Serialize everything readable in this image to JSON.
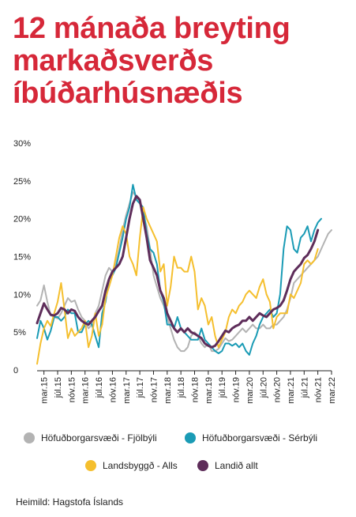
{
  "title": "12 mánaða breyting markaðsverðs íbúðarhúsnæðis",
  "source": "Heimild: Hagstofa Íslands",
  "chart_data": {
    "type": "line",
    "ylim": [
      0,
      30
    ],
    "y_ticks": [
      "0",
      "5%",
      "10%",
      "15%",
      "20%",
      "25%",
      "30%"
    ],
    "y_tick_values": [
      0,
      5,
      10,
      15,
      20,
      25,
      30
    ],
    "x_tick_labels": [
      "mar.15",
      "júl.15",
      "nóv.15",
      "mar.16",
      "júl.16",
      "nóv.16",
      "mar.17",
      "júl.17",
      "nóv.17",
      "mar.18",
      "júl.18",
      "nóv.18",
      "mar.19",
      "júl.19",
      "nóv.19",
      "mar.20",
      "júl.20",
      "nóv.20",
      "mar.21",
      "júl.21",
      "nóv.21",
      "mar.22"
    ],
    "x_tick_positions": [
      2,
      6,
      10,
      14,
      18,
      22,
      26,
      30,
      34,
      38,
      42,
      46,
      50,
      54,
      58,
      62,
      66,
      70,
      74,
      78,
      82,
      86
    ],
    "x_range": [
      0,
      86
    ],
    "series": [
      {
        "name": "Höfuðborgarsvæði - Fjölbýli",
        "color": "#b3b3b3",
        "values": [
          8.5,
          9.2,
          11.2,
          9.0,
          7.2,
          7.0,
          6.8,
          7.5,
          8.5,
          9.5,
          9.0,
          9.2,
          8.0,
          7.0,
          6.5,
          5.5,
          6.0,
          7.5,
          8.5,
          10.5,
          12.5,
          13.5,
          13.0,
          14.0,
          16.0,
          18.5,
          20.5,
          22.0,
          23.5,
          23.0,
          22.0,
          20.5,
          19.0,
          16.0,
          12.5,
          11.0,
          9.5,
          8.5,
          7.0,
          5.5,
          4.0,
          3.0,
          2.5,
          2.5,
          3.0,
          4.5,
          5.0,
          4.5,
          3.5,
          3.0,
          3.5,
          2.5,
          2.5,
          2.8,
          3.5,
          4.2,
          3.8,
          4.0,
          4.5,
          5.0,
          5.5,
          5.0,
          5.5,
          6.0,
          5.5,
          5.5,
          6.0,
          5.5,
          5.5,
          6.0,
          6.0,
          6.5,
          7.0,
          8.0,
          9.5,
          11.5,
          12.0,
          12.5,
          13.0,
          13.5,
          14.0,
          14.5,
          15.0,
          16.0,
          17.0,
          18.0,
          18.5
        ]
      },
      {
        "name": "Höfuðborgarsvæði - Sérbýli",
        "color": "#1a9bb5",
        "values": [
          4.2,
          6.5,
          5.5,
          4.0,
          5.2,
          7.0,
          7.0,
          6.5,
          7.0,
          8.0,
          7.5,
          7.5,
          5.0,
          5.0,
          6.0,
          6.5,
          6.0,
          4.5,
          3.0,
          7.5,
          9.0,
          12.0,
          12.5,
          13.5,
          15.5,
          17.5,
          20.0,
          21.5,
          24.5,
          22.5,
          22.0,
          21.5,
          18.0,
          16.0,
          15.5,
          14.0,
          10.5,
          9.0,
          6.0,
          6.0,
          5.5,
          7.0,
          5.5,
          5.0,
          4.5,
          4.0,
          4.0,
          4.0,
          5.5,
          4.0,
          3.5,
          3.0,
          2.5,
          2.2,
          2.5,
          3.5,
          3.5,
          3.2,
          3.5,
          3.0,
          3.5,
          2.5,
          2.0,
          3.5,
          4.5,
          6.0,
          7.0,
          7.5,
          8.0,
          7.0,
          7.5,
          10.0,
          16.0,
          19.0,
          18.5,
          16.0,
          15.5,
          17.5,
          18.0,
          19.0,
          17.0,
          18.5,
          19.5,
          20.0
        ]
      },
      {
        "name": "Landsbyggð - Alls",
        "color": "#f5bf2e",
        "values": [
          0.8,
          3.5,
          5.5,
          6.5,
          5.8,
          7.5,
          9.0,
          11.5,
          8.0,
          4.2,
          5.5,
          4.5,
          5.0,
          5.5,
          6.5,
          3.0,
          4.5,
          7.5,
          4.5,
          6.0,
          9.5,
          11.0,
          12.5,
          15.0,
          17.5,
          19.0,
          18.0,
          15.0,
          14.0,
          12.5,
          17.5,
          21.5,
          20.0,
          19.0,
          18.0,
          17.0,
          13.0,
          14.0,
          8.5,
          11.0,
          15.0,
          13.5,
          13.5,
          13.0,
          13.0,
          15.0,
          13.0,
          8.0,
          9.5,
          8.5,
          6.0,
          7.0,
          4.5,
          3.0,
          4.0,
          5.0,
          7.0,
          8.0,
          7.5,
          8.5,
          9.0,
          10.0,
          10.5,
          10.0,
          9.5,
          11.0,
          12.0,
          10.0,
          9.0,
          5.5,
          7.0,
          7.5,
          7.5,
          7.5,
          10.0,
          9.5,
          10.5,
          11.5,
          14.0,
          14.5,
          14.0,
          14.5,
          16.0
        ]
      },
      {
        "name": "Landið allt",
        "color": "#5e2d5a",
        "values": [
          6.2,
          7.5,
          8.8,
          8.0,
          7.3,
          7.2,
          7.5,
          8.2,
          8.0,
          7.5,
          8.0,
          7.8,
          7.0,
          6.5,
          6.2,
          6.0,
          6.5,
          7.0,
          7.8,
          8.5,
          10.5,
          12.0,
          13.0,
          13.5,
          14.0,
          15.0,
          17.5,
          20.0,
          22.0,
          23.0,
          22.5,
          20.0,
          17.5,
          14.5,
          13.5,
          12.5,
          10.5,
          9.5,
          7.5,
          6.5,
          5.5,
          5.0,
          5.5,
          5.0,
          5.5,
          5.0,
          4.8,
          4.5,
          4.2,
          3.5,
          3.2,
          3.0,
          3.2,
          3.8,
          4.5,
          5.2,
          5.0,
          5.5,
          5.8,
          6.0,
          6.5,
          6.5,
          7.0,
          6.5,
          7.0,
          7.5,
          7.2,
          7.0,
          7.5,
          8.0,
          8.2,
          8.5,
          9.2,
          10.5,
          12.0,
          13.0,
          13.5,
          14.0,
          14.8,
          15.2,
          16.0,
          17.0,
          18.5
        ]
      }
    ]
  },
  "legend": [
    {
      "label": "Höfuðborgarsvæði - Fjölbýli",
      "color": "#b3b3b3"
    },
    {
      "label": "Höfuðborgarsvæði - Sérbýli",
      "color": "#1a9bb5"
    },
    {
      "label": "Landsbyggð - Alls",
      "color": "#f5bf2e"
    },
    {
      "label": "Landið allt",
      "color": "#5e2d5a"
    }
  ]
}
